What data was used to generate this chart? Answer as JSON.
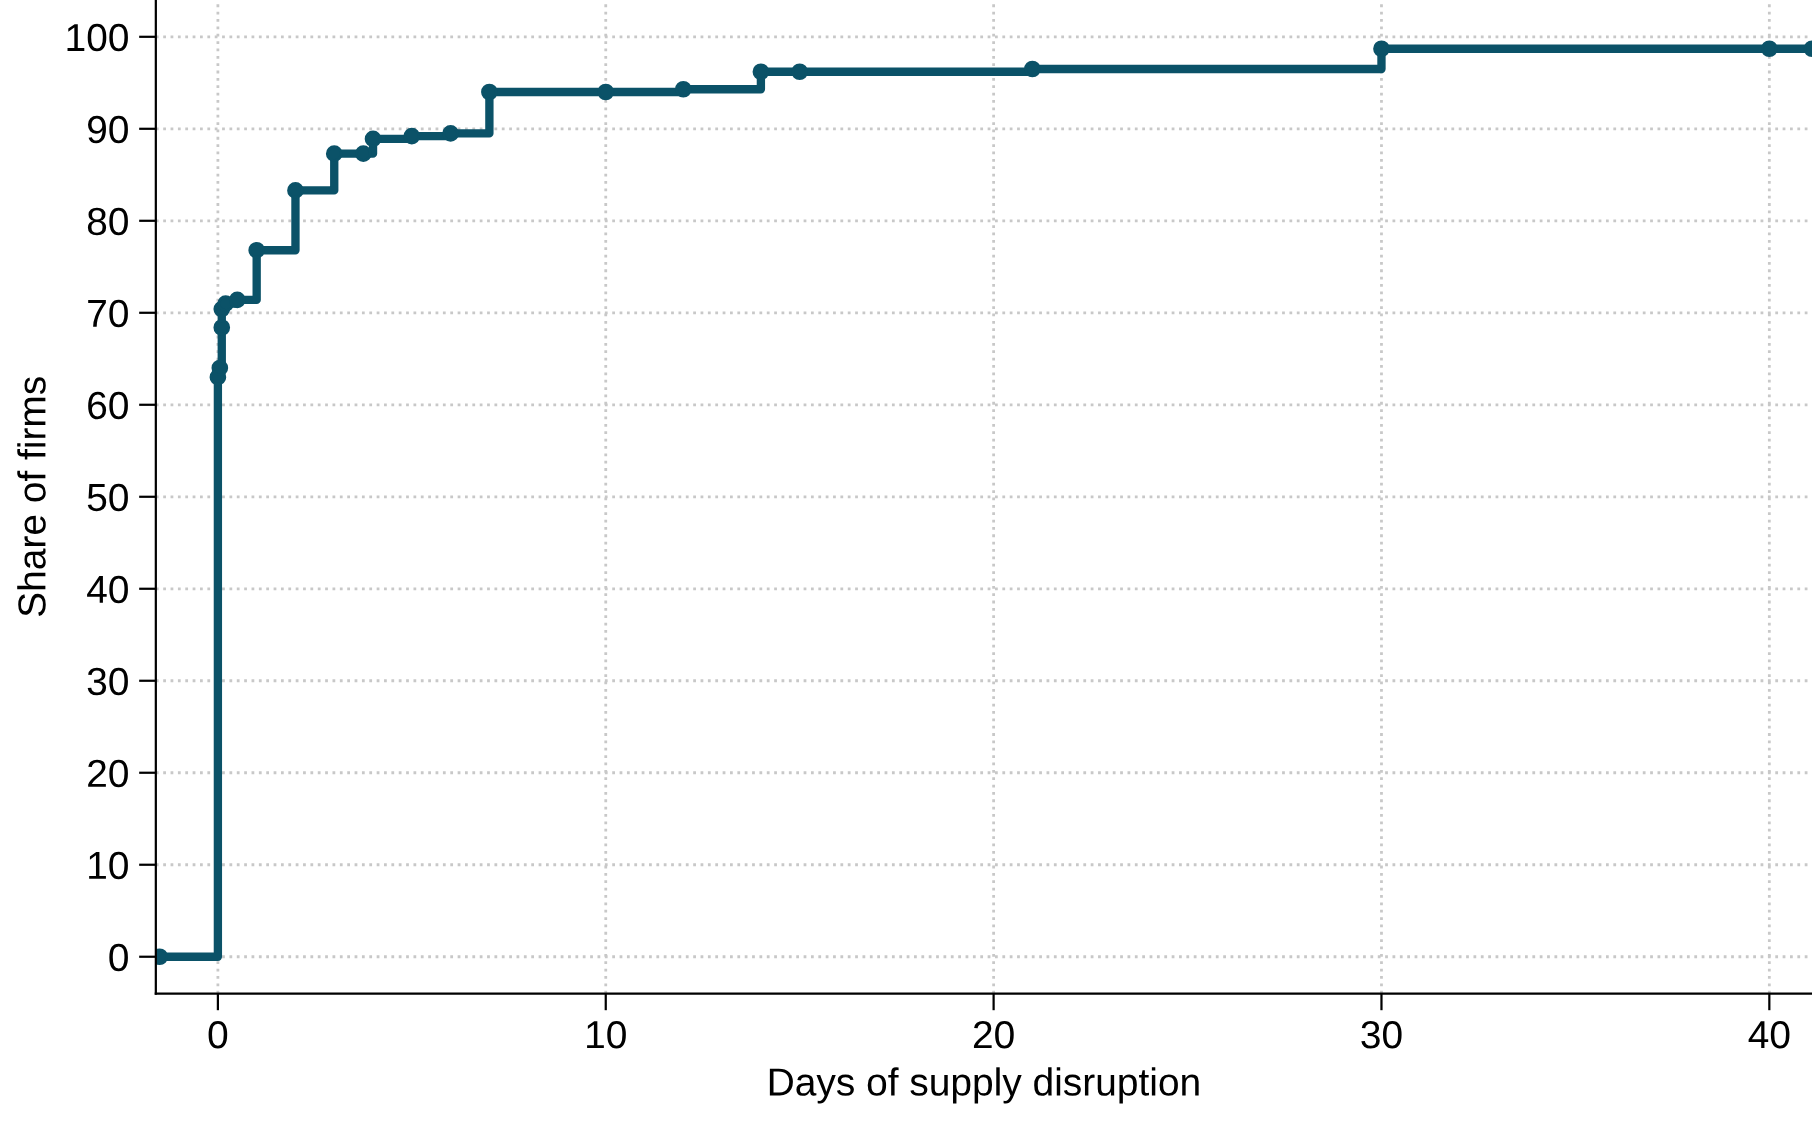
{
  "chart_data": {
    "type": "step",
    "xlabel": "Days of supply disruption",
    "ylabel": "Share of firms",
    "series": [
      {
        "color": "#0b5268",
        "x": [
          -1.5,
          0,
          0.05,
          0.1,
          0.1,
          0.2,
          0.5,
          1,
          2,
          3,
          3.75,
          4,
          5,
          6,
          7,
          10,
          12,
          14,
          15,
          21,
          30,
          40,
          41.1
        ],
        "values": [
          0,
          63,
          64,
          68.4,
          70.4,
          71,
          71.4,
          76.8,
          83.3,
          87.3,
          87.3,
          88.9,
          89.2,
          89.5,
          94,
          94,
          94.3,
          96.2,
          96.2,
          96.5,
          98.7,
          98.7,
          98.7
        ]
      }
    ],
    "xlim": [
      -1.6,
      41.1
    ],
    "ylim": [
      -4,
      104
    ],
    "xticks": [
      0,
      10,
      20,
      30,
      40
    ],
    "yticks": [
      0,
      10,
      20,
      30,
      40,
      50,
      60,
      70,
      80,
      90,
      100
    ],
    "grid": true,
    "marker": "circle",
    "line_style": "solid"
  }
}
